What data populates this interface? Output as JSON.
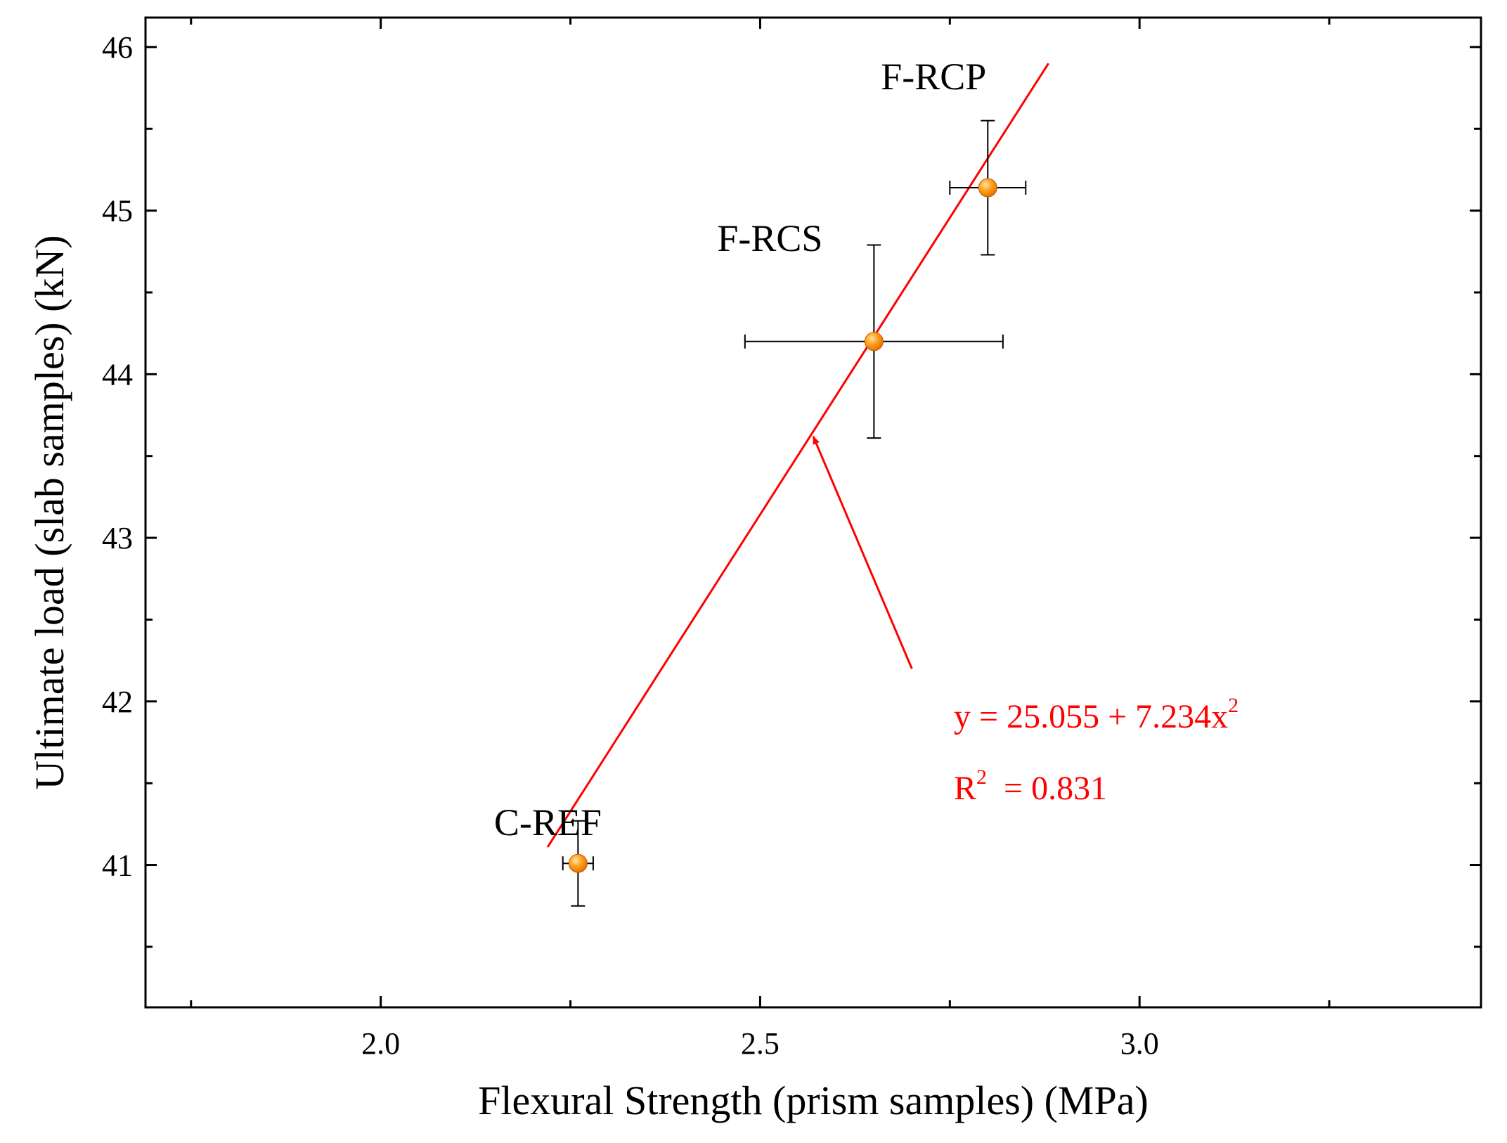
{
  "colors": {
    "axis": "#000000",
    "fit": "#ff0000",
    "point": "#ff8c00",
    "point_highlight": "#ffe2b0"
  },
  "chart_data": {
    "type": "scatter",
    "xlabel": "Flexural Strength (prism samples) (MPa)",
    "ylabel": "Ultimate load (slab samples) (kN)",
    "xlim": [
      1.69,
      3.45
    ],
    "ylim": [
      40.13,
      46.18
    ],
    "x_ticks": [
      {
        "value": 2.0,
        "label": "2.0"
      },
      {
        "value": 2.5,
        "label": "2.5"
      },
      {
        "value": 3.0,
        "label": "3.0"
      }
    ],
    "x_minor_ticks": [
      1.75,
      2.25,
      2.75,
      3.25
    ],
    "y_ticks": [
      {
        "value": 41,
        "label": "41"
      },
      {
        "value": 42,
        "label": "42"
      },
      {
        "value": 43,
        "label": "43"
      },
      {
        "value": 44,
        "label": "44"
      },
      {
        "value": 45,
        "label": "45"
      },
      {
        "value": 46,
        "label": "46"
      }
    ],
    "y_minor_ticks": [
      40.5,
      41.5,
      42.5,
      43.5,
      44.5,
      45.5
    ],
    "points": [
      {
        "label": "C-REF",
        "x": 2.26,
        "y": 41.01,
        "x_err": 0.02,
        "y_err": 0.26
      },
      {
        "label": "F-RCS",
        "x": 2.65,
        "y": 44.2,
        "x_err": 0.17,
        "y_err": 0.59
      },
      {
        "label": "F-RCP",
        "x": 2.8,
        "y": 45.14,
        "x_err": 0.05,
        "y_err": 0.41
      }
    ],
    "fit_line": {
      "x": [
        2.22,
        2.88
      ],
      "y": [
        41.11,
        45.9
      ]
    },
    "annotation": {
      "arrow_from": [
        2.7,
        42.2
      ],
      "arrow_to": [
        2.57,
        43.62
      ]
    },
    "equation": {
      "prefix": "y = 25.055 + 7.234x",
      "superscript": "2"
    },
    "r_squared": {
      "prefix": "R",
      "superscript": "2",
      "suffix": "  = 0.831"
    }
  }
}
